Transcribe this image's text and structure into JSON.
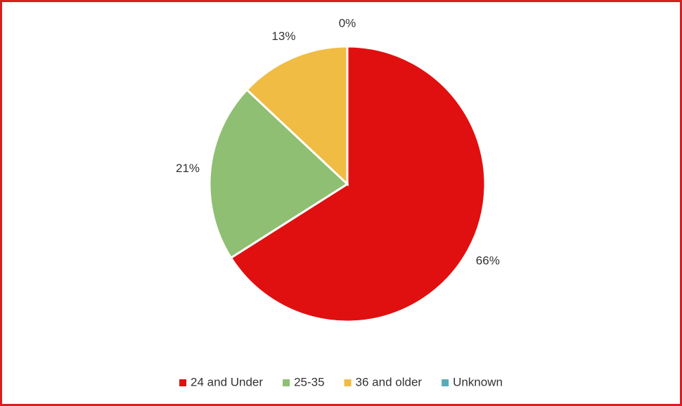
{
  "chart_data": {
    "type": "pie",
    "categories": [
      "24 and Under",
      "25-35",
      "36 and older",
      "Unknown"
    ],
    "values": [
      66,
      21,
      13,
      0
    ],
    "value_labels": [
      "66%",
      "21%",
      "13%",
      "0%"
    ],
    "colors": [
      "#e01010",
      "#8fbf72",
      "#f0bc44",
      "#5aabb8"
    ],
    "legend": "bottom"
  }
}
